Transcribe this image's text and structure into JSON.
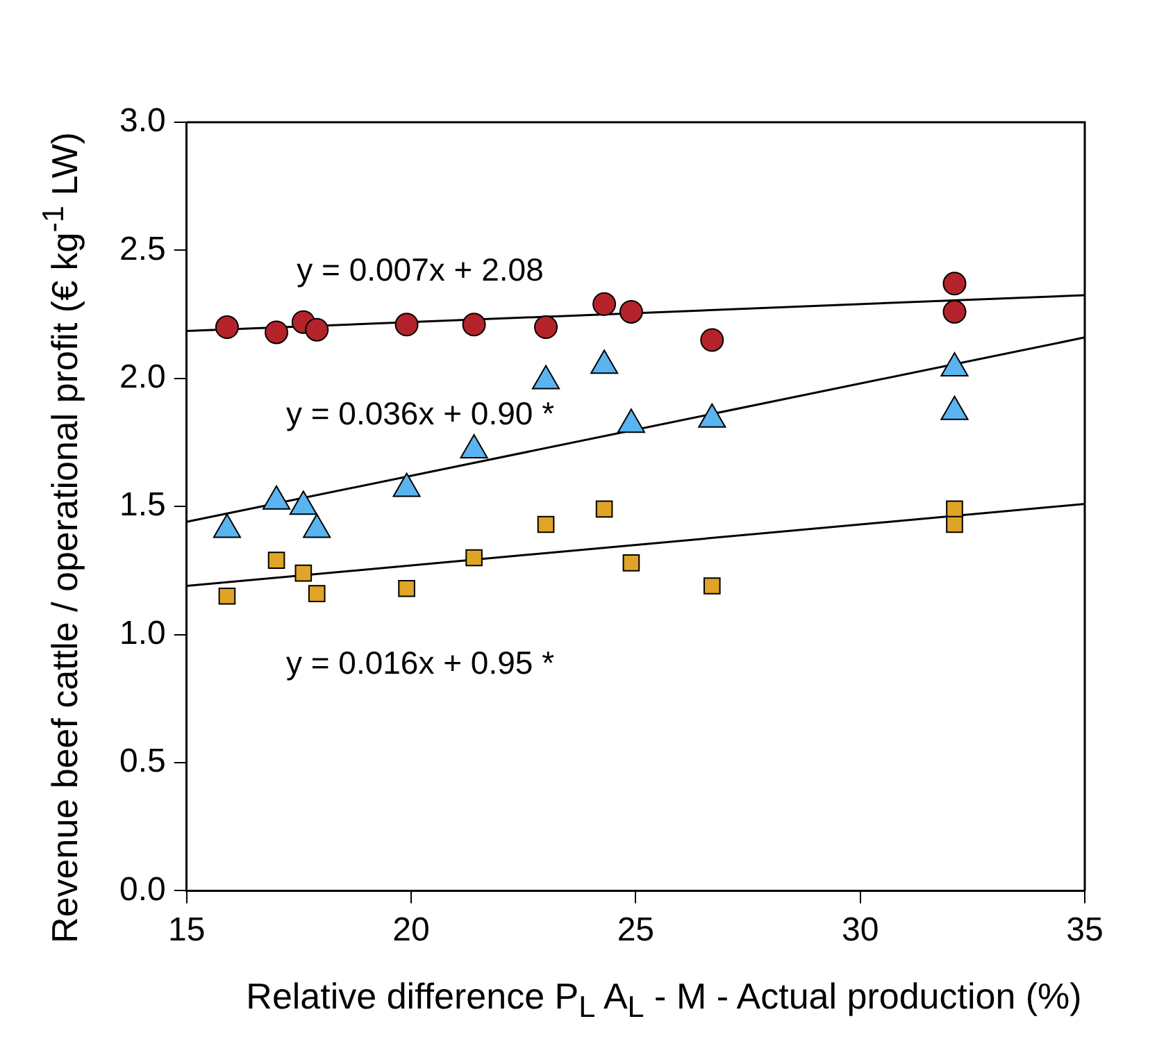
{
  "chart_data": {
    "type": "scatter",
    "xlabel": "Relative difference P$_{L}$ A$_{L}$ - M - Actual production (%)",
    "ylabel": "Revenue beef cattle / operational profit (€ kg$^{-1}$ LW)",
    "xlim": [
      15,
      35
    ],
    "xticks": [
      15,
      20,
      25,
      30,
      35
    ],
    "ylim": [
      0,
      3
    ],
    "yticks": [
      {
        "value": 0,
        "label": "0.0"
      },
      {
        "value": 0.5,
        "label": "0.5"
      },
      {
        "value": 1,
        "label": "1.0"
      },
      {
        "value": 1.5,
        "label": "1.5"
      },
      {
        "value": 2,
        "label": "2.0"
      },
      {
        "value": 2.5,
        "label": "2.5"
      },
      {
        "value": 3,
        "label": "3.0"
      }
    ],
    "grid": false,
    "legend": false,
    "series": [
      {
        "marker": "circle",
        "color": "#b5232a",
        "x": [
          15.9,
          17.0,
          17.6,
          17.9,
          19.9,
          21.4,
          23.0,
          24.3,
          24.9,
          26.7,
          32.1,
          32.1
        ],
        "values": [
          2.2,
          2.18,
          2.22,
          2.19,
          2.21,
          2.21,
          2.2,
          2.29,
          2.26,
          2.15,
          2.37,
          2.26
        ]
      },
      {
        "marker": "triangle",
        "color": "#5ab4f0",
        "x": [
          15.9,
          17.0,
          17.6,
          17.9,
          19.9,
          21.4,
          23.0,
          24.3,
          24.9,
          26.7,
          32.1,
          32.1
        ],
        "values": [
          1.41,
          1.52,
          1.5,
          1.41,
          1.57,
          1.72,
          1.99,
          2.05,
          1.82,
          1.84,
          2.04,
          1.87
        ]
      },
      {
        "marker": "square",
        "color": "#e0a526",
        "x": [
          15.9,
          17.0,
          17.6,
          17.9,
          19.9,
          21.4,
          23.0,
          24.3,
          24.9,
          26.7,
          32.1,
          32.1
        ],
        "values": [
          1.15,
          1.29,
          1.24,
          1.16,
          1.18,
          1.3,
          1.43,
          1.49,
          1.28,
          1.19,
          1.49,
          1.43
        ]
      },
      {
        "type": "line",
        "marker": "none",
        "color": "#000000",
        "x": [
          15,
          35
        ],
        "values": [
          2.185,
          2.325
        ]
      },
      {
        "type": "line",
        "marker": "none",
        "color": "#000000",
        "x": [
          15,
          35
        ],
        "values": [
          1.44,
          2.16
        ]
      },
      {
        "type": "line",
        "marker": "none",
        "color": "#000000",
        "x": [
          15,
          35
        ],
        "values": [
          1.19,
          1.51
        ]
      }
    ],
    "annotations": [
      "y = 0.007x + 2.08",
      "y = 0.036x + 0.90 *",
      "y = 0.016x + 0.95 *"
    ]
  }
}
